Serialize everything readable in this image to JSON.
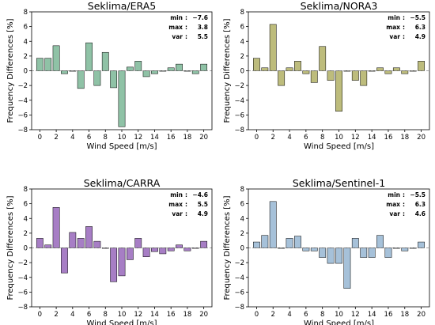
{
  "chart_data": [
    {
      "type": "bar",
      "title": "Seklima/ERA5",
      "xlabel": "Wind Speed [m/s]",
      "ylabel": "Frequency Differences [%]",
      "x": [
        0,
        1,
        2,
        3,
        4,
        5,
        6,
        7,
        8,
        9,
        10,
        11,
        12,
        13,
        14,
        15,
        16,
        17,
        18,
        19,
        20
      ],
      "values": [
        1.7,
        1.7,
        3.4,
        -0.4,
        0.0,
        -2.4,
        3.8,
        -2.0,
        2.5,
        -2.3,
        -7.6,
        0.5,
        1.3,
        -0.8,
        -0.4,
        0.0,
        0.4,
        0.9,
        0.0,
        -0.4,
        0.9
      ],
      "xticks": [
        0,
        2,
        4,
        6,
        8,
        10,
        12,
        14,
        16,
        18,
        20
      ],
      "yticks": [
        -8,
        -6,
        -4,
        -2,
        0,
        2,
        4,
        6,
        8
      ],
      "ylim": [
        -8,
        8
      ],
      "color": "#8fc2a6",
      "stats": [
        {
          "label": "min",
          "value": "−7.6"
        },
        {
          "label": "max",
          "value": "3.8"
        },
        {
          "label": "var",
          "value": "5.5"
        }
      ]
    },
    {
      "type": "bar",
      "title": "Seklima/NORA3",
      "xlabel": "Wind Speed [m/s]",
      "ylabel": "Frequency Differences [%]",
      "x": [
        0,
        1,
        2,
        3,
        4,
        5,
        6,
        7,
        8,
        9,
        10,
        11,
        12,
        13,
        14,
        15,
        16,
        17,
        18,
        19,
        20
      ],
      "values": [
        1.7,
        0.4,
        6.3,
        -2.0,
        0.4,
        1.3,
        -0.4,
        -1.6,
        3.3,
        -1.3,
        -5.5,
        0.0,
        -1.3,
        -2.0,
        0.0,
        0.4,
        -0.4,
        0.4,
        -0.4,
        0.0,
        1.3
      ],
      "xticks": [
        0,
        2,
        4,
        6,
        8,
        10,
        12,
        14,
        16,
        18,
        20
      ],
      "yticks": [
        -8,
        -6,
        -4,
        -2,
        0,
        2,
        4,
        6,
        8
      ],
      "ylim": [
        -8,
        8
      ],
      "color": "#bdbc7c",
      "stats": [
        {
          "label": "min",
          "value": "−5.5"
        },
        {
          "label": "max",
          "value": "6.3"
        },
        {
          "label": "var",
          "value": "4.9"
        }
      ]
    },
    {
      "type": "bar",
      "title": "Seklima/CARRA",
      "xlabel": "Wind Speed [m/s]",
      "ylabel": "Frequency Differences [%]",
      "x": [
        0,
        1,
        2,
        3,
        4,
        5,
        6,
        7,
        8,
        9,
        10,
        11,
        12,
        13,
        14,
        15,
        16,
        17,
        18,
        19,
        20
      ],
      "values": [
        1.3,
        0.4,
        5.5,
        -3.4,
        2.1,
        1.3,
        2.9,
        0.9,
        0.0,
        -4.6,
        -3.8,
        -1.6,
        1.3,
        -1.2,
        -0.5,
        -0.8,
        -0.4,
        0.4,
        -0.4,
        0.0,
        0.9
      ],
      "xticks": [
        0,
        2,
        4,
        6,
        8,
        10,
        12,
        14,
        16,
        18,
        20
      ],
      "yticks": [
        -8,
        -6,
        -4,
        -2,
        0,
        2,
        4,
        6,
        8
      ],
      "ylim": [
        -8,
        8
      ],
      "color": "#a77ec5",
      "stats": [
        {
          "label": "min",
          "value": "−4.6"
        },
        {
          "label": "max",
          "value": "5.5"
        },
        {
          "label": "var",
          "value": "4.9"
        }
      ]
    },
    {
      "type": "bar",
      "title": "Seklima/Sentinel-1",
      "xlabel": "Wind Speed [m/s]",
      "ylabel": "Frequency Differences [%]",
      "x": [
        0,
        1,
        2,
        3,
        4,
        5,
        6,
        7,
        8,
        9,
        10,
        11,
        12,
        13,
        14,
        15,
        16,
        17,
        18,
        19,
        20
      ],
      "values": [
        0.8,
        1.7,
        6.3,
        0.0,
        1.3,
        1.6,
        -0.4,
        -0.4,
        -1.3,
        -2.1,
        -2.1,
        -5.5,
        1.3,
        -1.3,
        -1.3,
        1.7,
        -1.3,
        0.0,
        -0.4,
        0.0,
        0.8
      ],
      "xticks": [
        0,
        2,
        4,
        6,
        8,
        10,
        12,
        14,
        16,
        18,
        20
      ],
      "yticks": [
        -8,
        -6,
        -4,
        -2,
        0,
        2,
        4,
        6,
        8
      ],
      "ylim": [
        -8,
        8
      ],
      "color": "#a6c1d9",
      "stats": [
        {
          "label": "min",
          "value": "−5.5"
        },
        {
          "label": "max",
          "value": "6.3"
        },
        {
          "label": "var",
          "value": "4.6"
        }
      ]
    }
  ]
}
